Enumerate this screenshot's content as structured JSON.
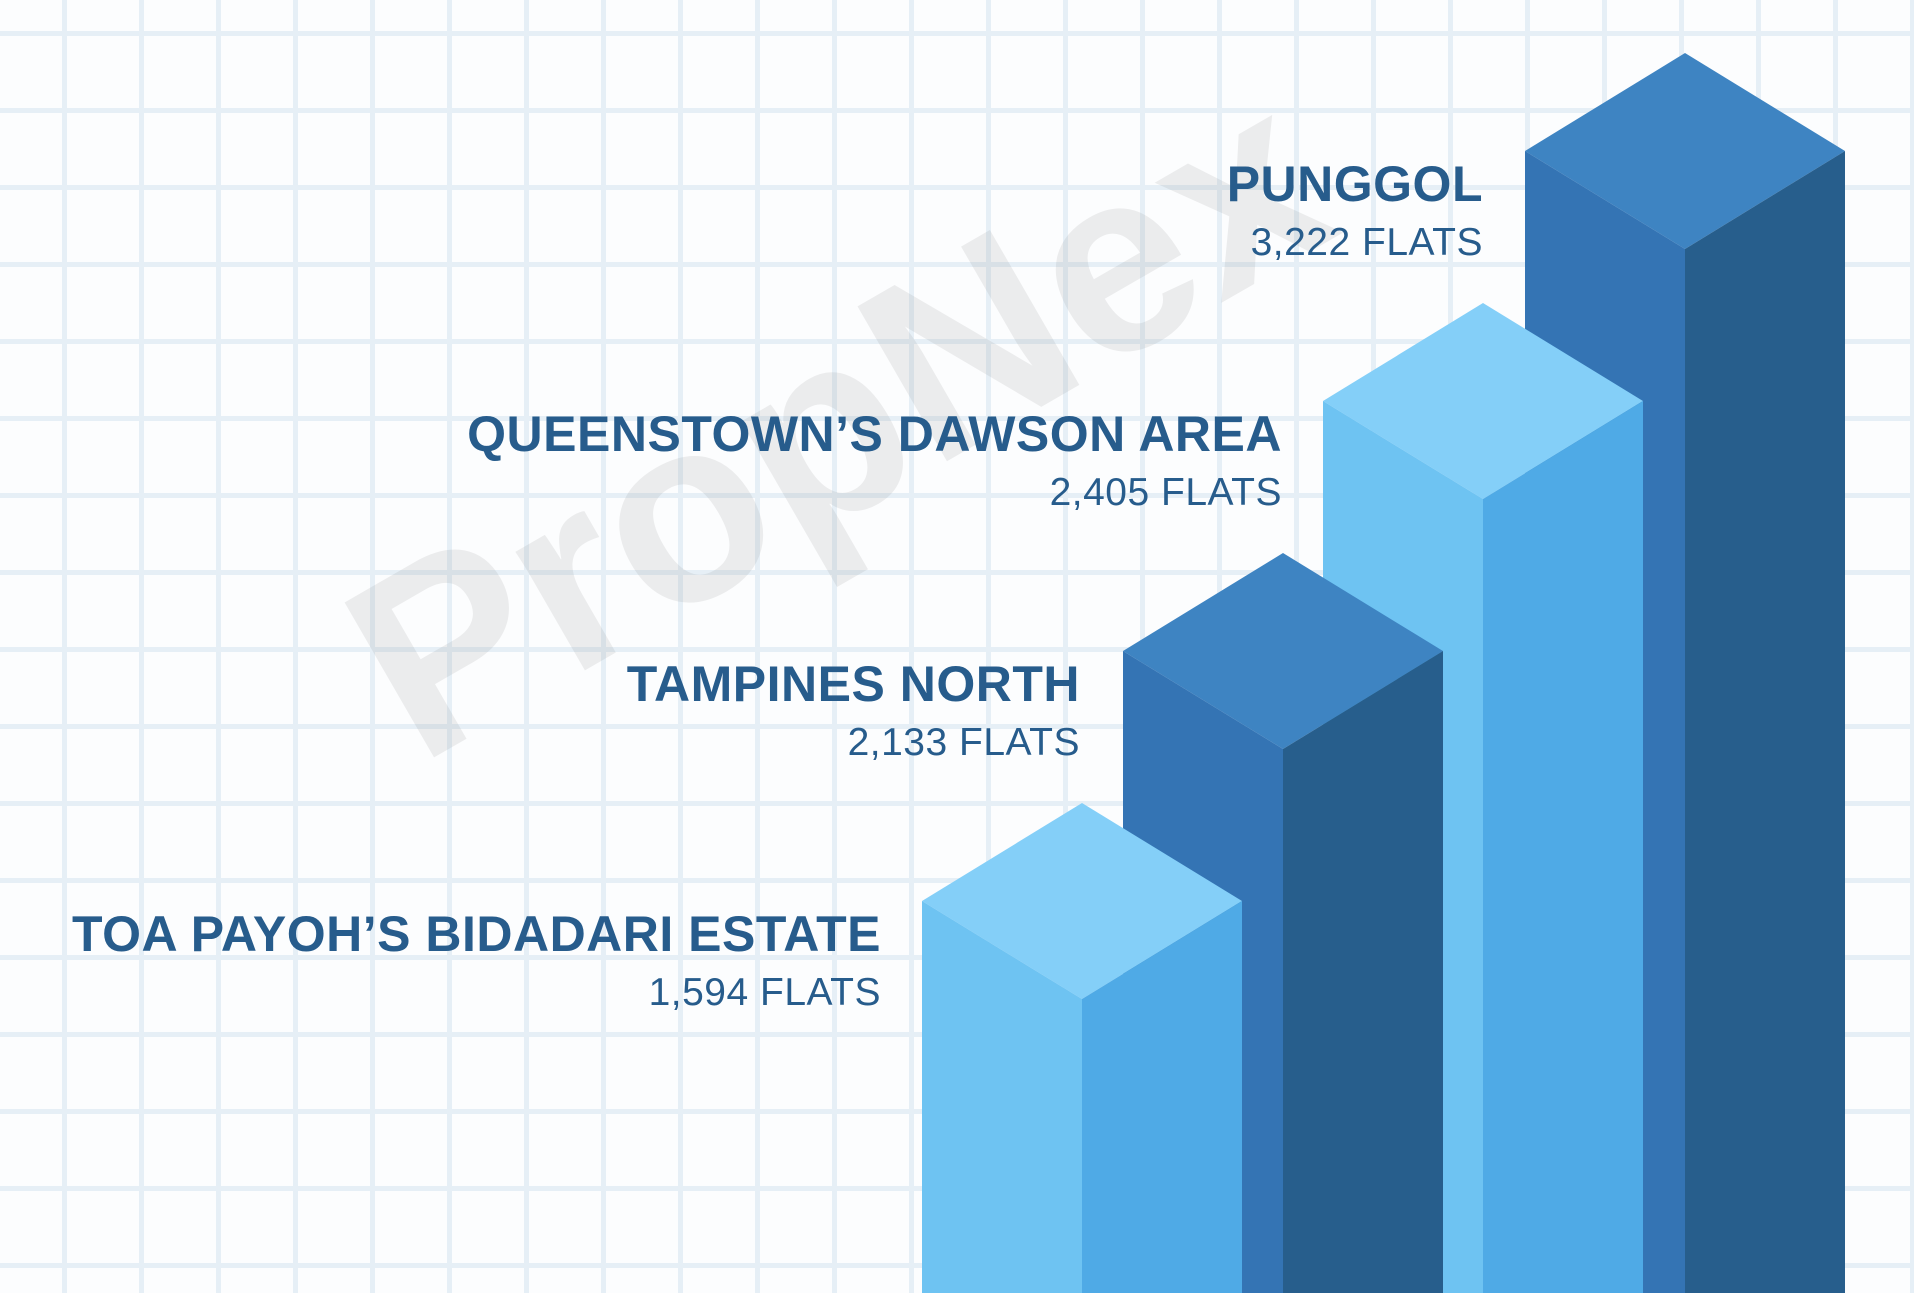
{
  "watermark": "PropNex",
  "colors": {
    "dark": {
      "top": "#3e84c2",
      "left": "#3474b4",
      "right": "#275e8c"
    },
    "light": {
      "top": "#84cff8",
      "left": "#6ec3f2",
      "right": "#4faae6"
    },
    "text": "#275c8c"
  },
  "chart_data": {
    "type": "bar",
    "style": "3d isometric columns, ascending left to right",
    "grid": true,
    "categories": [
      "TOA PAYOH’S BIDADARI ESTATE",
      "TAMPINES NORTH",
      "QUEENSTOWN’S DAWSON AREA",
      "PUNGGOL"
    ],
    "values": [
      1594,
      2133,
      2405,
      3222
    ],
    "value_labels": [
      "1,594 FLATS",
      "2,133 FLATS",
      "2,405 FLATS",
      "3,222 FLATS"
    ],
    "bar_colors": [
      "light",
      "dark",
      "light",
      "dark"
    ]
  }
}
